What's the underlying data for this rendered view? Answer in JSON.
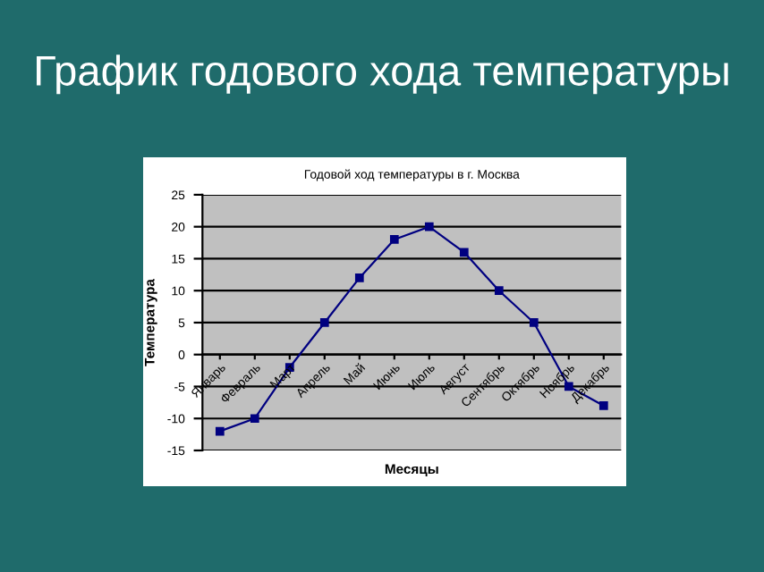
{
  "chart_data": {
    "type": "line",
    "title": "График годового хода температуры",
    "subtitle": "Годовой ход температуры в г. Москва",
    "xlabel": "Месяцы",
    "ylabel": "Температура",
    "categories": [
      "Январь",
      "Февраль",
      "Март",
      "Апрель",
      "Май",
      "Июнь",
      "Июль",
      "Август",
      "Сентябрь",
      "Октябрь",
      "Ноябрь",
      "Декабрь"
    ],
    "series": [
      {
        "color": "#000080",
        "values": [
          -12,
          -10,
          -2,
          5,
          12,
          18,
          20,
          16,
          10,
          5,
          -5,
          -8
        ]
      }
    ],
    "ylim": [
      -15,
      25
    ],
    "yticks": [
      -15,
      -10,
      -5,
      0,
      5,
      10,
      15,
      20,
      25
    ],
    "grid": "y",
    "marker": "square",
    "line_style": "solid"
  }
}
